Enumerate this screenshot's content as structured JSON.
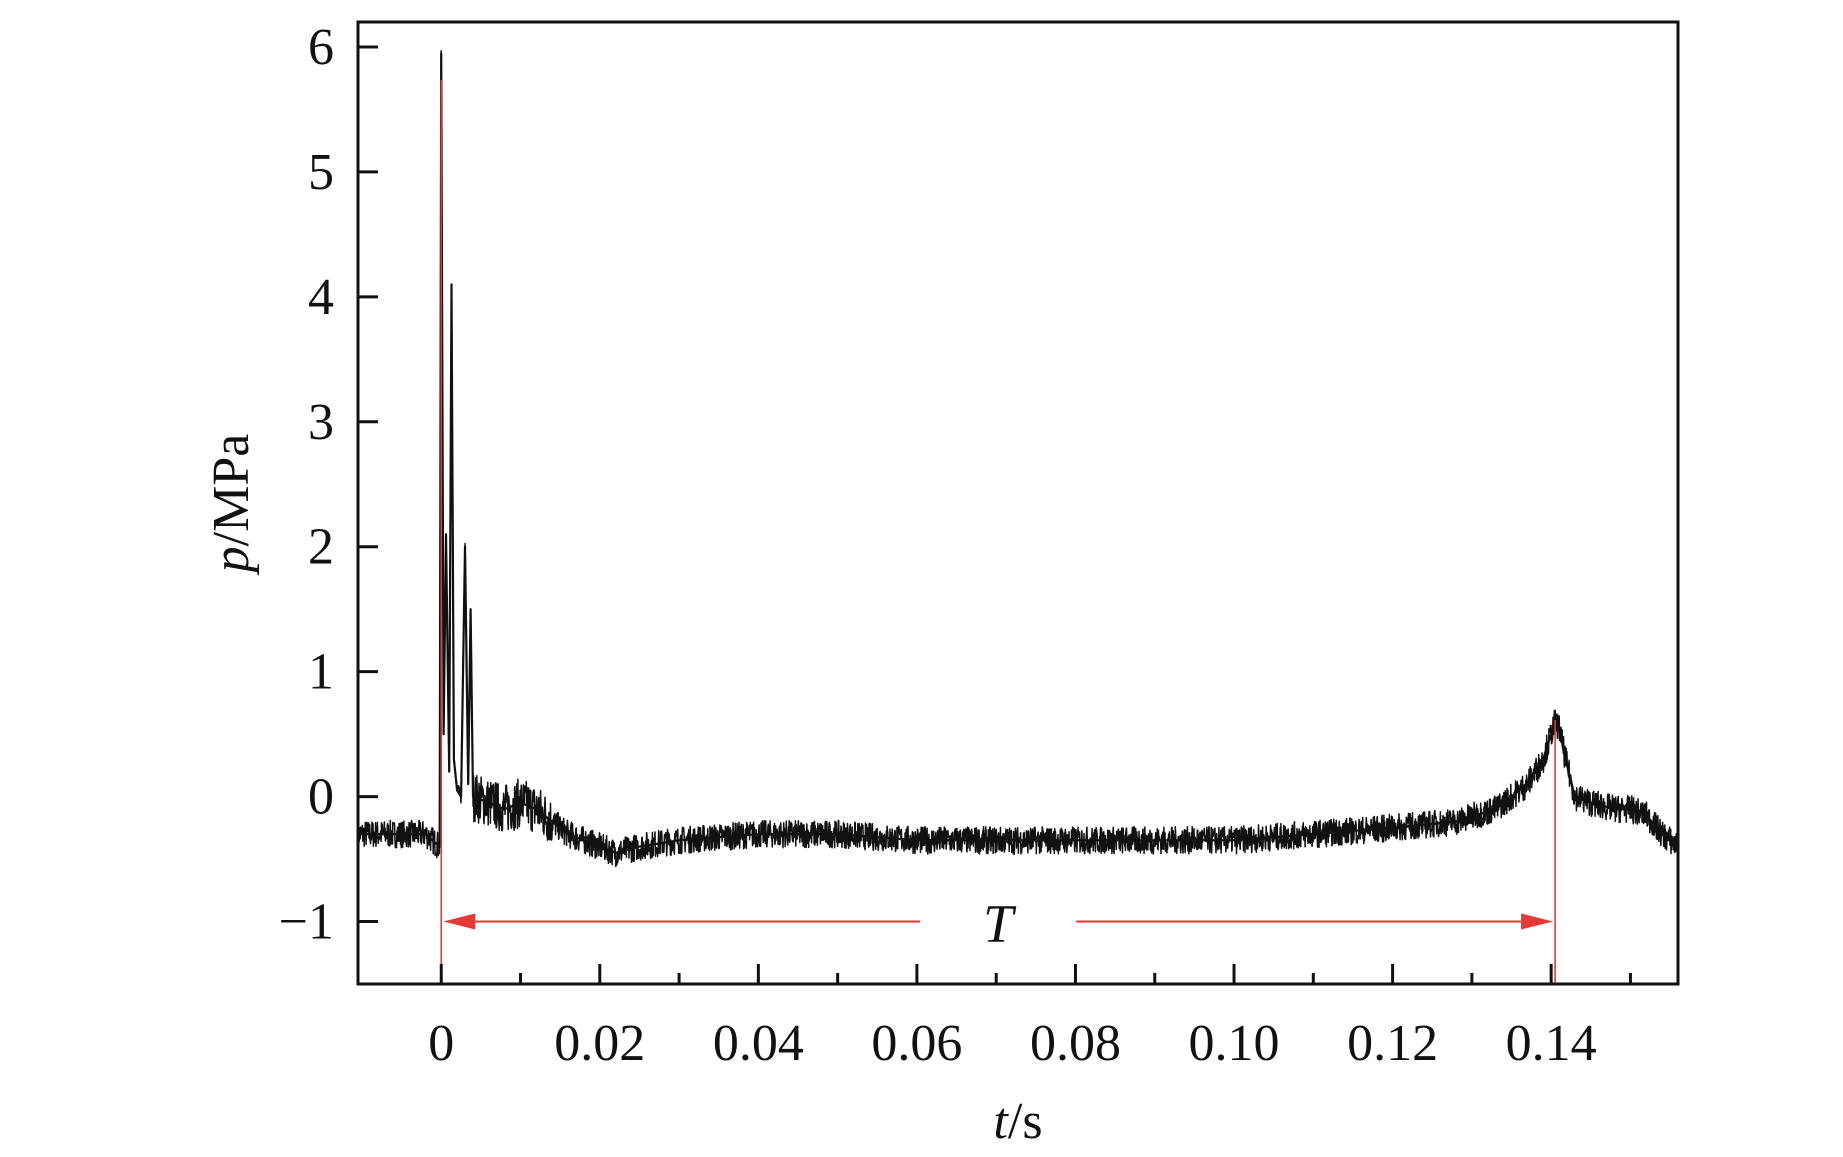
{
  "chart_data": {
    "type": "line",
    "title": "",
    "xlabel_italic": "t",
    "xlabel_unit": "/s",
    "ylabel_italic": "p",
    "ylabel_unit": "/MPa",
    "xlim": [
      -0.0105,
      0.156
    ],
    "ylim": [
      -1.5,
      6.2
    ],
    "x_ticks": [
      0,
      0.02,
      0.04,
      0.06,
      0.08,
      0.1,
      0.12,
      0.14
    ],
    "x_tick_labels": [
      "0",
      "0.02",
      "0.04",
      "0.06",
      "0.08",
      "0.10",
      "0.12",
      "0.14"
    ],
    "x_minor_ticks": [
      0.01,
      0.03,
      0.05,
      0.07,
      0.09,
      0.11,
      0.13,
      0.15
    ],
    "y_ticks": [
      -1,
      0,
      1,
      2,
      3,
      4,
      5,
      6
    ],
    "y_tick_labels": [
      "−1",
      "0",
      "1",
      "2",
      "3",
      "4",
      "5",
      "6"
    ],
    "grid": false,
    "legend": "none",
    "series": [
      {
        "color": "#111111",
        "x": [
          -0.0105,
          -0.006,
          -0.002,
          -0.0002,
          0.0,
          0.0003,
          0.0006,
          0.001,
          0.0013,
          0.0016,
          0.002,
          0.0025,
          0.003,
          0.0034,
          0.0037,
          0.004,
          0.006,
          0.008,
          0.01,
          0.012,
          0.014,
          0.016,
          0.018,
          0.02,
          0.022,
          0.025,
          0.03,
          0.04,
          0.05,
          0.06,
          0.07,
          0.08,
          0.09,
          0.1,
          0.11,
          0.12,
          0.128,
          0.133,
          0.137,
          0.139,
          0.1405,
          0.141,
          0.1418,
          0.143,
          0.145,
          0.148,
          0.15,
          0.152,
          0.154,
          0.156
        ],
        "y": [
          -0.3,
          -0.3,
          -0.3,
          -0.4,
          5.95,
          0.5,
          2.1,
          0.2,
          4.1,
          0.3,
          0.05,
          0.0,
          2.0,
          0.1,
          1.5,
          0.0,
          -0.05,
          -0.1,
          -0.05,
          -0.1,
          -0.2,
          -0.3,
          -0.35,
          -0.4,
          -0.45,
          -0.4,
          -0.35,
          -0.3,
          -0.3,
          -0.35,
          -0.35,
          -0.35,
          -0.35,
          -0.35,
          -0.3,
          -0.25,
          -0.2,
          -0.1,
          0.1,
          0.3,
          0.6,
          0.55,
          0.3,
          0.0,
          -0.05,
          -0.1,
          -0.1,
          -0.15,
          -0.3,
          -0.4
        ]
      }
    ],
    "annotations": [
      {
        "text": "T",
        "kind": "period-arrow",
        "color": "#e53935",
        "x_start": 0.0,
        "x_end": 0.1405,
        "y": -1.0
      }
    ]
  }
}
